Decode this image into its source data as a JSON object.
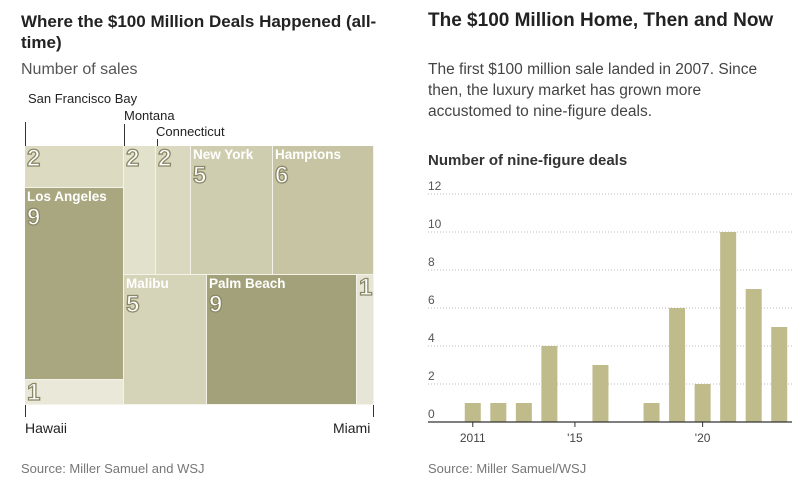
{
  "left": {
    "title": "Where the $100 Million Deals Happened (all-time)",
    "subtitle": "Number of sales",
    "source": "Source: Miller Samuel and WSJ",
    "labels": {
      "sf": "San Francisco Bay",
      "montana": "Montana",
      "connecticut": "Connecticut",
      "hawaii": "Hawaii",
      "miami": "Miami"
    },
    "treemap": [
      {
        "key": "sf",
        "name": "San Francisco Bay",
        "value": 2,
        "show_name": false,
        "color": "#dcdbc2"
      },
      {
        "key": "la",
        "name": "Los Angeles",
        "value": 9,
        "show_name": true,
        "color": "#a9a77f"
      },
      {
        "key": "hawaii",
        "name": "Hawaii",
        "value": 1,
        "show_name": false,
        "color": "#e9e8d9"
      },
      {
        "key": "montana",
        "name": "Montana",
        "value": 2,
        "show_name": false,
        "color": "#e2e1cc"
      },
      {
        "key": "connecticut",
        "name": "Connecticut",
        "value": 2,
        "show_name": false,
        "color": "#dad9c0"
      },
      {
        "key": "ny",
        "name": "New York",
        "value": 5,
        "show_name": true,
        "color": "#cfcdaf"
      },
      {
        "key": "hamptons",
        "name": "Hamptons",
        "value": 6,
        "show_name": true,
        "color": "#c6c4a2"
      },
      {
        "key": "malibu",
        "name": "Malibu",
        "value": 5,
        "show_name": true,
        "color": "#d5d3b8"
      },
      {
        "key": "palm",
        "name": "Palm Beach",
        "value": 9,
        "show_name": true,
        "color": "#a3a17a"
      },
      {
        "key": "miami",
        "name": "Miami",
        "value": 1,
        "show_name": false,
        "color": "#e7e6d6"
      }
    ]
  },
  "right": {
    "title": "The $100 Million Home, Then and Now",
    "description": "The first $100 million sale landed in 2007. Since then, the luxury market has grown more accustomed to nine-figure deals.",
    "chart_title": "Number of nine-figure deals",
    "source": "Source: Miller Samuel/WSJ"
  },
  "chart_data": [
    {
      "type": "treemap",
      "title": "Where the $100 Million Deals Happened (all-time)",
      "subtitle": "Number of sales",
      "categories": [
        "San Francisco Bay",
        "Los Angeles",
        "Hawaii",
        "Montana",
        "Connecticut",
        "New York",
        "Hamptons",
        "Malibu",
        "Palm Beach",
        "Miami"
      ],
      "values": [
        2,
        9,
        1,
        2,
        2,
        5,
        6,
        5,
        9,
        1
      ]
    },
    {
      "type": "bar",
      "title": "Number of nine-figure deals",
      "x": [
        2011,
        2012,
        2013,
        2014,
        2015,
        2016,
        2017,
        2018,
        2019,
        2020,
        2021,
        2022,
        2023
      ],
      "values": [
        1,
        1,
        1,
        4,
        0,
        3,
        0,
        1,
        6,
        2,
        10,
        7,
        5
      ],
      "x_tick_labels": [
        "2011",
        "'15",
        "'20"
      ],
      "y_ticks": [
        "0",
        "2",
        "4",
        "6",
        "8",
        "10",
        "12"
      ],
      "ylim": [
        0,
        12
      ],
      "grid": "horizontal dotted",
      "bar_color": "#bfbb8a"
    }
  ]
}
